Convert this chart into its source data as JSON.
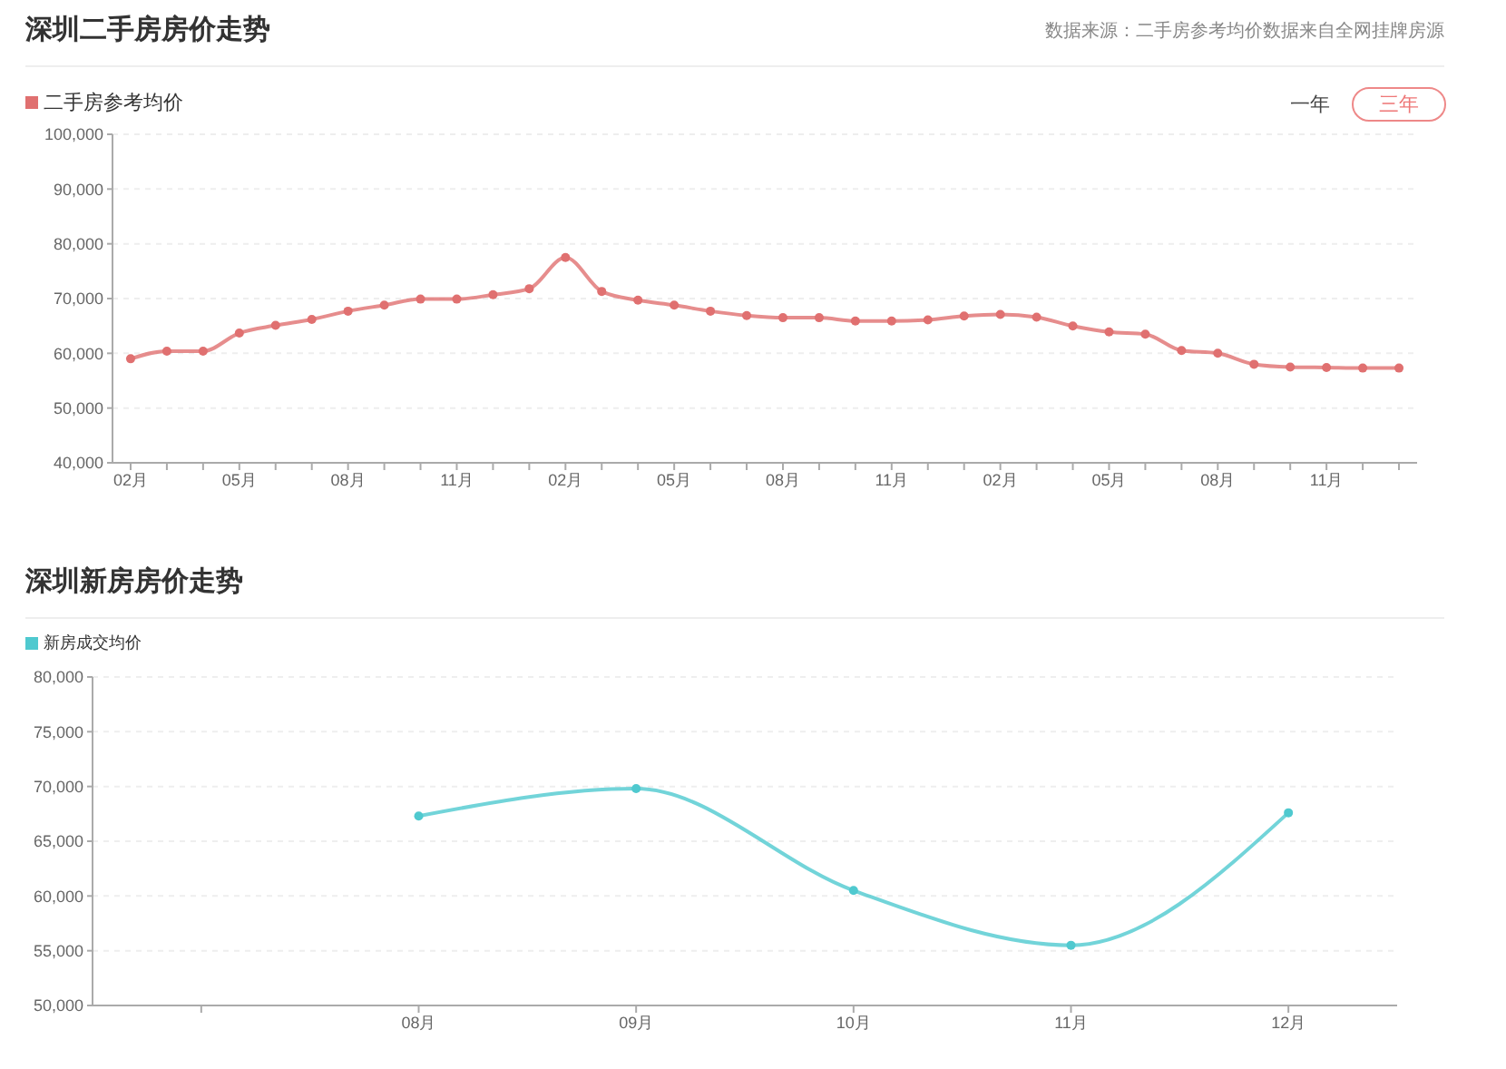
{
  "chart_data": [
    {
      "type": "line",
      "title": "深圳二手房房价走势",
      "annotations": [
        "数据来源：二手房参考均价数据来自全网挂牌房源",
        "一年",
        "三年"
      ],
      "categories": [
        "02月",
        null,
        null,
        "05月",
        null,
        null,
        "08月",
        null,
        null,
        "11月",
        null,
        null,
        "02月",
        null,
        null,
        "05月",
        null,
        null,
        "08月",
        null,
        null,
        "11月",
        null,
        null,
        "02月",
        null,
        null,
        "05月",
        null,
        null,
        "08月",
        null,
        null,
        "11月",
        null,
        null
      ],
      "series": [
        {
          "name": "二手房参考均价",
          "color": "#e07070",
          "values": [
            59000,
            60400,
            60400,
            63700,
            65100,
            66200,
            67700,
            68800,
            69900,
            69900,
            70700,
            71800,
            77500,
            71300,
            69700,
            68800,
            67700,
            66900,
            66500,
            66500,
            65900,
            65900,
            66100,
            66800,
            67100,
            66600,
            65000,
            63900,
            63500,
            60500,
            60000,
            58000,
            57500,
            57400,
            57300,
            57300
          ]
        }
      ],
      "ylim": [
        40000,
        100000
      ],
      "yticks": [
        {
          "value": 40000,
          "label": "40,000"
        },
        {
          "value": 50000,
          "label": "50,000"
        },
        {
          "value": 60000,
          "label": "60,000"
        },
        {
          "value": 70000,
          "label": "70,000"
        },
        {
          "value": 80000,
          "label": "80,000"
        },
        {
          "value": 90000,
          "label": "90,000"
        },
        {
          "value": 100000,
          "label": "100,000"
        }
      ],
      "grid": "y",
      "legend": "top left",
      "marker": "circle",
      "line_style": "solid"
    },
    {
      "type": "line",
      "title": "深圳新房房价走势",
      "categories": [
        null,
        "08月",
        "09月",
        "10月",
        "11月",
        "12月"
      ],
      "series": [
        {
          "name": "新房成交均价",
          "color": "#4fc9cf",
          "values": [
            null,
            67300,
            69800,
            60500,
            55500,
            67600
          ]
        }
      ],
      "ylim": [
        50000,
        80000
      ],
      "yticks": [
        {
          "value": 50000,
          "label": "50,000"
        },
        {
          "value": 55000,
          "label": "55,000"
        },
        {
          "value": 60000,
          "label": "60,000"
        },
        {
          "value": 65000,
          "label": "65,000"
        },
        {
          "value": 70000,
          "label": "70,000"
        },
        {
          "value": 75000,
          "label": "75,000"
        },
        {
          "value": 80000,
          "label": "80,000"
        }
      ],
      "grid": "y",
      "legend": "top left",
      "marker": "circle",
      "line_style": "solid"
    }
  ]
}
